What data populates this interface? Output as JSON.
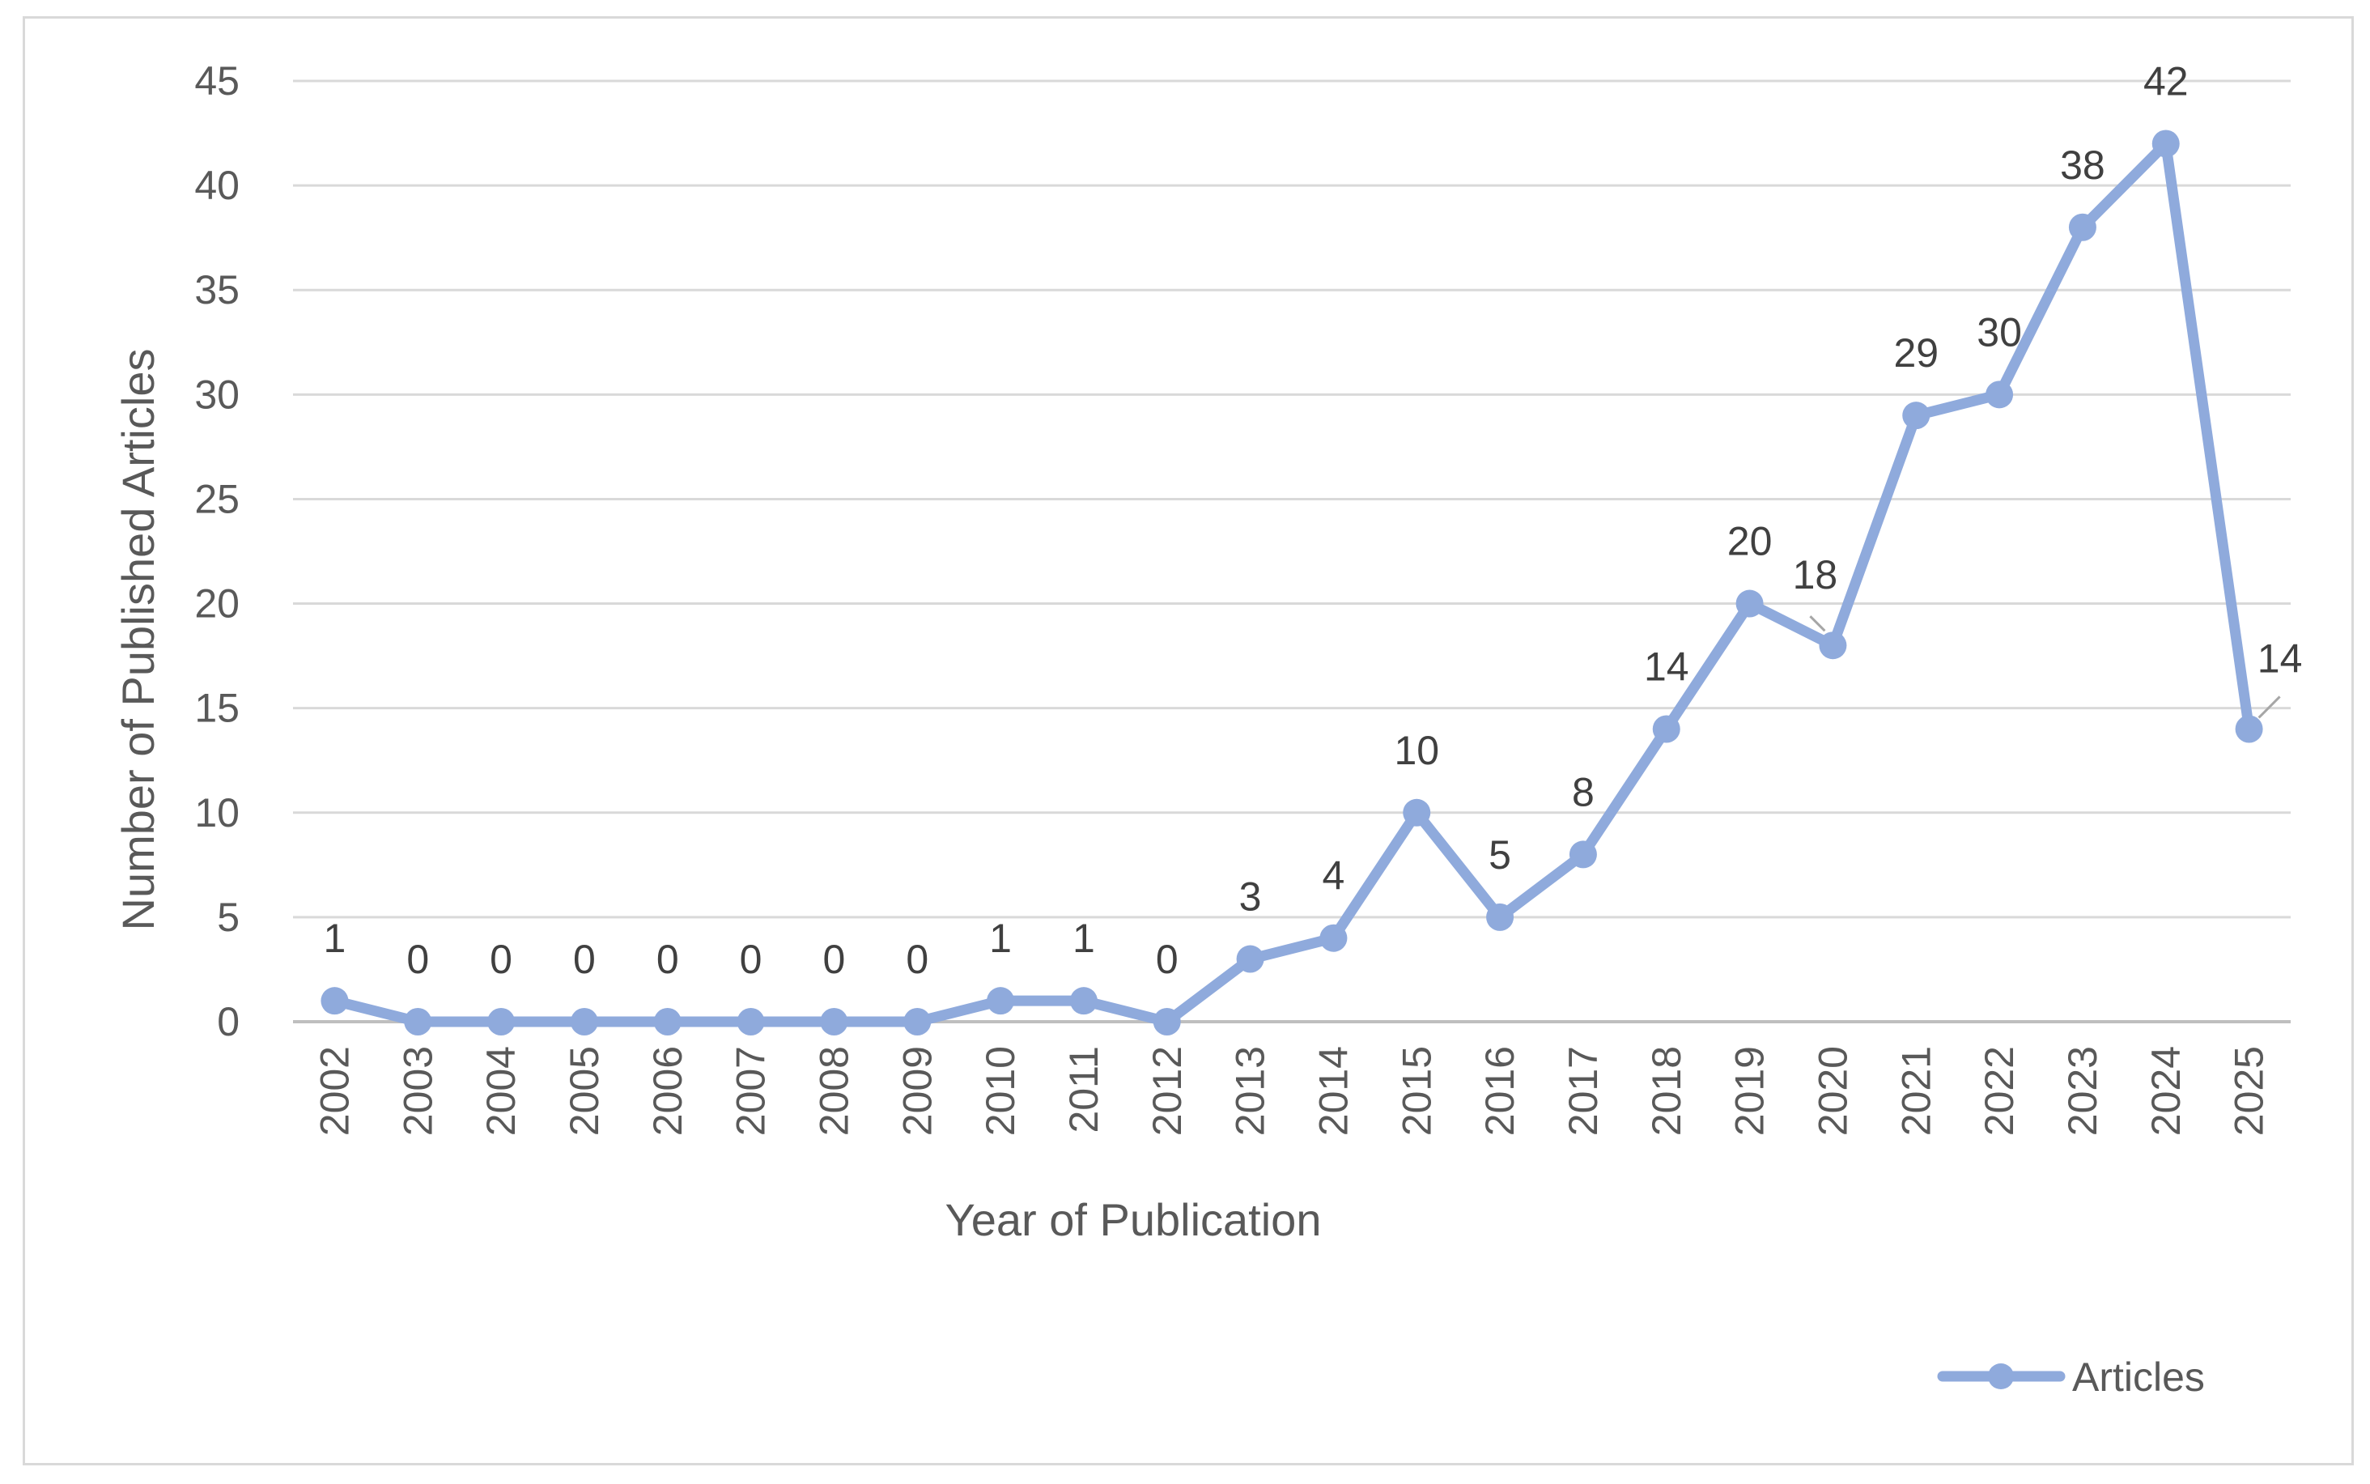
{
  "chart_data": {
    "type": "line",
    "title": "",
    "xlabel": "Year of Publication",
    "ylabel": "Number of Published Articles",
    "ylim": [
      0,
      45
    ],
    "yticks": [
      0,
      5,
      10,
      15,
      20,
      25,
      30,
      35,
      40,
      45
    ],
    "grid": "horizontal",
    "legend_position": "bottom-right",
    "categories": [
      "2002",
      "2003",
      "2004",
      "2005",
      "2006",
      "2007",
      "2008",
      "2009",
      "2010",
      "2011",
      "2012",
      "2013",
      "2014",
      "2015",
      "2016",
      "2017",
      "2018",
      "2019",
      "2020",
      "2021",
      "2022",
      "2023",
      "2024",
      "2025"
    ],
    "series": [
      {
        "name": "Articles",
        "color": "#8faadc",
        "values": [
          1,
          0,
          0,
          0,
          0,
          0,
          0,
          0,
          1,
          1,
          0,
          3,
          4,
          10,
          5,
          8,
          14,
          20,
          18,
          29,
          30,
          38,
          42,
          14
        ],
        "data_labels": [
          "1",
          "0",
          "0",
          "0",
          "0",
          "0",
          "0",
          "0",
          "1",
          "1",
          "0",
          "3",
          "4",
          "10",
          "5",
          "8",
          "14",
          "20",
          "18",
          "29",
          "30",
          "38",
          "42",
          "14"
        ]
      }
    ]
  }
}
